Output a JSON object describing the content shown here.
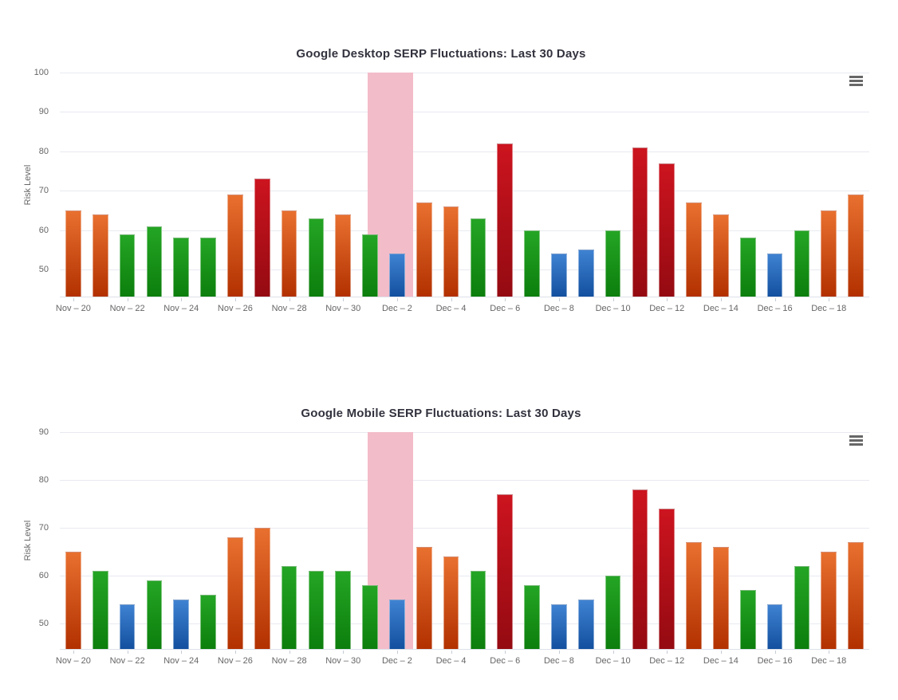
{
  "page": {
    "background": "#ffffff"
  },
  "icons": {
    "export_menu": "hamburger-menu-icon"
  },
  "styles": {
    "title_color": "#32323e",
    "axis_label_color": "#666666",
    "gridline_color": "#e8eaf0",
    "axis_line_color": "#dde1ea",
    "plot_band_color": "#f3bcc9",
    "level_colors": {
      "orange": [
        "#e8702f",
        "#b23000"
      ],
      "green": [
        "#24a524",
        "#0c7e0c"
      ],
      "red": [
        "#cc141f",
        "#940a11"
      ],
      "blue": [
        "#3f82d2",
        "#124f9e"
      ]
    }
  },
  "chart_data": [
    {
      "type": "bar",
      "title": "Google Desktop SERP Fluctuations: Last 30 Days",
      "xlabel": "",
      "ylabel": "Risk Level",
      "categories": [
        "Nov – 20",
        "Nov – 22",
        "Nov – 24",
        "Nov – 26",
        "Nov – 28",
        "Nov – 30",
        "Dec – 2",
        "Dec – 4",
        "Dec – 6",
        "Dec – 8",
        "Dec – 10",
        "Dec – 12",
        "Dec – 14",
        "Dec – 16",
        "Dec – 18"
      ],
      "bars_per_category": 2,
      "values": [
        65,
        64,
        59,
        61,
        58,
        58,
        69,
        73,
        65,
        63,
        64,
        59,
        54,
        67,
        66,
        63,
        82,
        60,
        54,
        55,
        60,
        81,
        77,
        67,
        64,
        58,
        54,
        60,
        65,
        69
      ],
      "levels": [
        "orange",
        "orange",
        "green",
        "green",
        "green",
        "green",
        "orange",
        "red",
        "orange",
        "green",
        "orange",
        "green",
        "blue",
        "orange",
        "orange",
        "green",
        "red",
        "green",
        "blue",
        "blue",
        "green",
        "red",
        "red",
        "orange",
        "orange",
        "green",
        "blue",
        "green",
        "orange",
        "orange"
      ],
      "yticks": [
        50,
        60,
        70,
        80,
        90,
        100
      ],
      "ylim": [
        42.9,
        100
      ],
      "grid": true,
      "legend": "none",
      "plot_band": {
        "highlight_category": "Dec – 2",
        "from_pct": 38.0,
        "width_pct": 5.65,
        "color": "#f3bcc9"
      }
    },
    {
      "type": "bar",
      "title": "Google Mobile SERP Fluctuations: Last 30 Days",
      "xlabel": "",
      "ylabel": "Risk Level",
      "categories": [
        "Nov – 20",
        "Nov – 22",
        "Nov – 24",
        "Nov – 26",
        "Nov – 28",
        "Nov – 30",
        "Dec – 2",
        "Dec – 4",
        "Dec – 6",
        "Dec – 8",
        "Dec – 10",
        "Dec – 12",
        "Dec – 14",
        "Dec – 16",
        "Dec – 18"
      ],
      "bars_per_category": 2,
      "values": [
        65,
        61,
        54,
        59,
        55,
        56,
        68,
        70,
        62,
        61,
        61,
        58,
        55,
        66,
        64,
        61,
        77,
        58,
        54,
        55,
        60,
        78,
        74,
        67,
        66,
        57,
        54,
        62,
        65,
        67
      ],
      "levels": [
        "orange",
        "green",
        "blue",
        "green",
        "blue",
        "green",
        "orange",
        "orange",
        "green",
        "green",
        "green",
        "green",
        "blue",
        "orange",
        "orange",
        "green",
        "red",
        "green",
        "blue",
        "blue",
        "green",
        "red",
        "red",
        "orange",
        "orange",
        "green",
        "blue",
        "green",
        "orange",
        "orange"
      ],
      "yticks": [
        50,
        60,
        70,
        80,
        90
      ],
      "ylim": [
        44.5,
        90
      ],
      "grid": true,
      "legend": "none",
      "plot_band": {
        "highlight_category": "Dec – 2",
        "from_pct": 38.0,
        "width_pct": 5.65,
        "color": "#f3bcc9"
      }
    }
  ]
}
